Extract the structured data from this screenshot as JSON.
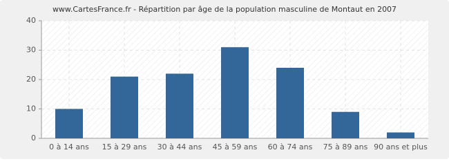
{
  "chart_data": {
    "type": "bar",
    "title": "www.CartesFrance.fr - Répartition par âge de la population masculine de Montaut en 2007",
    "categories": [
      "0 à 14 ans",
      "15 à 29 ans",
      "30 à 44 ans",
      "45 à 59 ans",
      "60 à 74 ans",
      "75 à 89 ans",
      "90 ans et plus"
    ],
    "values": [
      10,
      21,
      22,
      31,
      24,
      9,
      2
    ],
    "color": "#336699",
    "ylim": [
      0,
      40
    ],
    "yticks": [
      0,
      10,
      20,
      30,
      40
    ],
    "grid": true
  }
}
